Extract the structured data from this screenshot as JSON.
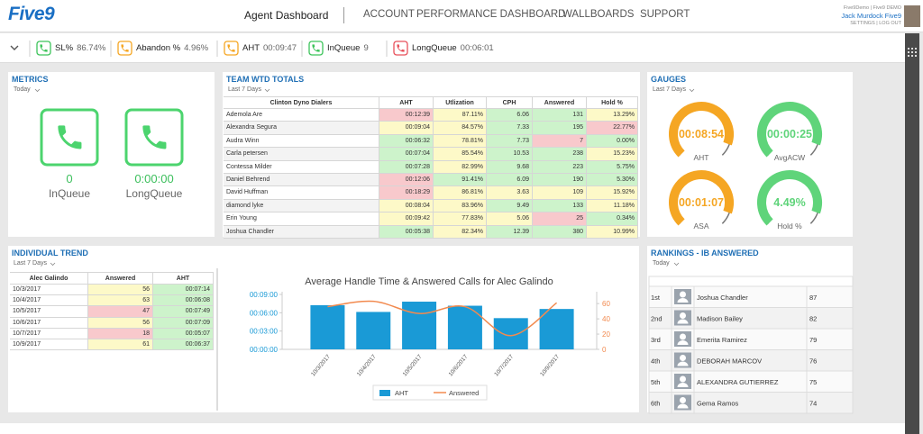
{
  "header": {
    "logo": "Five9",
    "nav_active": "Agent Dashboard",
    "nav": [
      "ACCOUNT",
      "PERFORMANCE DASHBOARD",
      "WALLBOARDS",
      "SUPPORT"
    ],
    "user_org": "Five9Demo | Five9 DEMO",
    "user_name": "Jack Murdock Five9",
    "user_links": "SETTINGS | LOG OUT"
  },
  "status_bar": [
    {
      "label": "SL%",
      "value": "86.74%",
      "color": "#3cc35a"
    },
    {
      "label": "Abandon %",
      "value": "4.96%",
      "color": "#f5a623"
    },
    {
      "label": "AHT",
      "value": "00:09:47",
      "color": "#f5a623"
    },
    {
      "label": "InQueue",
      "value": "9",
      "color": "#3cc35a"
    },
    {
      "label": "LongQueue",
      "value": "00:06:01",
      "color": "#e8505b"
    }
  ],
  "metrics": {
    "title": "METRICS",
    "period": "Today",
    "color": "#4cd46e",
    "tiles": [
      {
        "value": "0",
        "label": "InQueue"
      },
      {
        "value": "0:00:00",
        "label": "LongQueue"
      }
    ]
  },
  "team": {
    "title": "TEAM WTD TOTALS",
    "period": "Last 7 Days",
    "columns": [
      "Clinton Dyno Dialers",
      "AHT",
      "Utlization",
      "CPH",
      "Answered",
      "Hold %"
    ],
    "rows": [
      [
        "Ademola Are",
        "00:12:39",
        "87.11%",
        "6.06",
        "131",
        "13.29%"
      ],
      [
        "Alexandra Segura",
        "00:09:04",
        "84.57%",
        "7.33",
        "195",
        "22.77%"
      ],
      [
        "Audra Winn",
        "00:06:32",
        "78.81%",
        "7.73",
        "7",
        "0.00%"
      ],
      [
        "Carla petersen",
        "00:07:04",
        "85.54%",
        "10.53",
        "238",
        "15.23%"
      ],
      [
        "Contessa Milder",
        "00:07:28",
        "82.99%",
        "9.68",
        "223",
        "5.75%"
      ],
      [
        "Daniel Behrend",
        "00:12:06",
        "91.41%",
        "6.09",
        "190",
        "5.30%"
      ],
      [
        "David Huffman",
        "00:18:29",
        "86.81%",
        "3.63",
        "109",
        "15.92%"
      ],
      [
        "diamond lyke",
        "00:08:04",
        "83.96%",
        "9.49",
        "133",
        "11.18%"
      ],
      [
        "Erin Young",
        "00:09:42",
        "77.83%",
        "5.06",
        "25",
        "0.34%"
      ],
      [
        "Joshua Chandler",
        "00:05:38",
        "82.34%",
        "12.39",
        "380",
        "10.99%"
      ]
    ],
    "cell_colors": [
      [
        "#f8c9cc",
        "#fdf9c8",
        "#cdf3cb",
        "#cdf3cb",
        "#fdf9c8"
      ],
      [
        "#fdf9c8",
        "#fdf9c8",
        "#cdf3cb",
        "#cdf3cb",
        "#f8c9cc"
      ],
      [
        "#cdf3cb",
        "#fdf9c8",
        "#cdf3cb",
        "#f8c9cc",
        "#cdf3cb"
      ],
      [
        "#cdf3cb",
        "#fdf9c8",
        "#cdf3cb",
        "#cdf3cb",
        "#fdf9c8"
      ],
      [
        "#cdf3cb",
        "#fdf9c8",
        "#cdf3cb",
        "#cdf3cb",
        "#cdf3cb"
      ],
      [
        "#f8c9cc",
        "#cdf3cb",
        "#cdf3cb",
        "#cdf3cb",
        "#cdf3cb"
      ],
      [
        "#f8c9cc",
        "#fdf9c8",
        "#fdf9c8",
        "#fdf9c8",
        "#fdf9c8"
      ],
      [
        "#fdf9c8",
        "#fdf9c8",
        "#cdf3cb",
        "#cdf3cb",
        "#fdf9c8"
      ],
      [
        "#fdf9c8",
        "#fdf9c8",
        "#fdf9c8",
        "#f8c9cc",
        "#cdf3cb"
      ],
      [
        "#cdf3cb",
        "#fdf9c8",
        "#cdf3cb",
        "#cdf3cb",
        "#fdf9c8"
      ]
    ]
  },
  "gauges": {
    "title": "GAUGES",
    "period": "Last 7 Days",
    "items": [
      {
        "value": "00:08:54",
        "label": "AHT",
        "color": "#f5a623"
      },
      {
        "value": "00:00:25",
        "label": "AvgACW",
        "color": "#5fd47a"
      },
      {
        "value": "00:01:07",
        "label": "ASA",
        "color": "#f5a623"
      },
      {
        "value": "4.49%",
        "label": "Hold %",
        "color": "#5fd47a"
      }
    ]
  },
  "trend": {
    "title": "INDIVIDUAL TREND",
    "period": "Last 7 Days",
    "columns": [
      "Alec Galindo",
      "Answered",
      "AHT"
    ],
    "rows": [
      [
        "10/3/2017",
        "56",
        "00:07:14"
      ],
      [
        "10/4/2017",
        "63",
        "00:06:08"
      ],
      [
        "10/5/2017",
        "47",
        "00:07:49"
      ],
      [
        "10/6/2017",
        "56",
        "00:07:09"
      ],
      [
        "10/7/2017",
        "18",
        "00:05:07"
      ],
      [
        "10/9/2017",
        "61",
        "00:06:37"
      ]
    ],
    "cell_colors": [
      [
        "#fdf9c8",
        "#cdf3cb"
      ],
      [
        "#fdf9c8",
        "#cdf3cb"
      ],
      [
        "#f8c9cc",
        "#cdf3cb"
      ],
      [
        "#fdf9c8",
        "#cdf3cb"
      ],
      [
        "#f8c9cc",
        "#cdf3cb"
      ],
      [
        "#fdf9c8",
        "#cdf3cb"
      ]
    ]
  },
  "chart_data": {
    "type": "combo",
    "title": "Average Handle Time & Answered Calls for Alec Galindo",
    "categories": [
      "10/3/2017",
      "10/4/2017",
      "10/5/2017",
      "10/6/2017",
      "10/7/2017",
      "10/9/2017"
    ],
    "series": [
      {
        "name": "AHT",
        "type": "bar",
        "color": "#1a9ad6",
        "values": [
          434,
          368,
          469,
          429,
          307,
          397
        ]
      },
      {
        "name": "Answered",
        "type": "line",
        "axis": "y2",
        "color": "#f28a4f",
        "values": [
          56,
          63,
          47,
          56,
          18,
          61
        ]
      }
    ],
    "ylim": [
      0,
      540
    ],
    "yticks": [
      {
        "value": 0,
        "label": "00:00:00"
      },
      {
        "value": 180,
        "label": "00:03:00"
      },
      {
        "value": 360,
        "label": "00:06:00"
      },
      {
        "value": 540,
        "label": "00:09:00"
      }
    ],
    "y2lim": [
      0,
      72
    ],
    "y2ticks": [
      0,
      20,
      40,
      60
    ],
    "legend": "bottom"
  },
  "rankings": {
    "title": "RANKINGS - IB ANSWERED",
    "period": "Today",
    "rows": [
      [
        "1st",
        "Joshua Chandler",
        "87"
      ],
      [
        "2nd",
        "Madison Bailey",
        "82"
      ],
      [
        "3rd",
        "Emerita Ramirez",
        "79"
      ],
      [
        "4th",
        "DEBORAH MARCOV",
        "76"
      ],
      [
        "5th",
        "ALEXANDRA GUTIERREZ",
        "75"
      ],
      [
        "6th",
        "Gema Ramos",
        "74"
      ]
    ]
  }
}
